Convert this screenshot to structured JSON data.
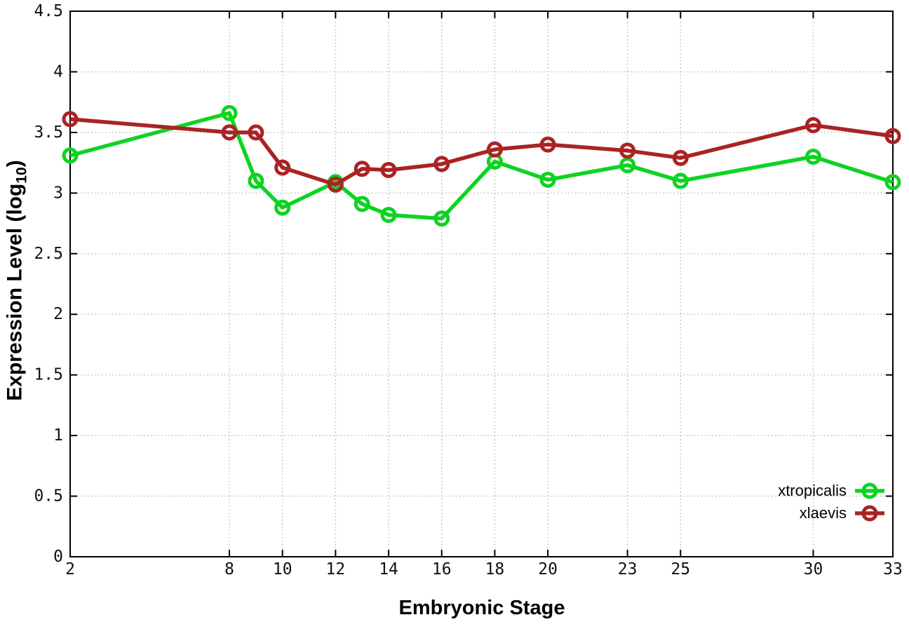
{
  "figure": {
    "background": "#ffffff",
    "xlabel": "Embryonic Stage",
    "ylabel": "Expression Level (log10)",
    "ylabel_prefix": "Expression Level (log",
    "ylabel_subscript": "10",
    "ylabel_suffix": ")"
  },
  "chart_data": {
    "type": "line",
    "title": "",
    "xlabel": "Embryonic Stage",
    "ylabel": "Expression Level (log10)",
    "x": [
      2,
      8,
      9,
      10,
      12,
      13,
      14,
      16,
      18,
      20,
      23,
      25,
      30,
      33
    ],
    "series": [
      {
        "name": "xtropicalis",
        "color": "#0ed321",
        "values": [
          3.31,
          3.66,
          3.1,
          2.88,
          3.09,
          2.91,
          2.82,
          2.79,
          3.26,
          3.11,
          3.23,
          3.1,
          3.3,
          3.09
        ]
      },
      {
        "name": "xlaevis",
        "color": "#aa2323",
        "values": [
          3.61,
          3.5,
          3.5,
          3.21,
          3.07,
          3.2,
          3.19,
          3.24,
          3.36,
          3.4,
          3.35,
          3.29,
          3.56,
          3.47
        ]
      }
    ],
    "xlim": [
      2,
      33
    ],
    "ylim": [
      0,
      4.5
    ],
    "xticks": [
      "2",
      "8",
      "10",
      "12",
      "14",
      "16",
      "18",
      "20",
      "23",
      "25",
      "30",
      "33"
    ],
    "yticks": [
      "0",
      "0.5",
      "1",
      "1.5",
      "2",
      "2.5",
      "3",
      "3.5",
      "4",
      "4.5"
    ],
    "grid": true,
    "grid_color": "#b7b7b7",
    "axis_color": "#000000",
    "tick_label_color": "#111111",
    "marker": "open-circle",
    "legend_position": "bottom-right"
  }
}
